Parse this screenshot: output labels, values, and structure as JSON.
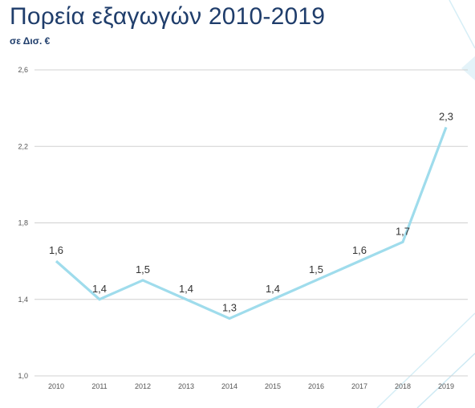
{
  "slide": {
    "title": "Πορεία εξαγωγών 2010-2019",
    "subtitle": "σε Δισ. €"
  },
  "colors": {
    "title": "#1f3d6b",
    "line": "#9fdcec",
    "grid": "#d0d0d0",
    "accent": "#6fc6e6"
  },
  "chart_data": {
    "type": "line",
    "title": "",
    "xlabel": "",
    "ylabel": "",
    "ylim": [
      1.0,
      2.6
    ],
    "yticks": [
      "1,0",
      "1,4",
      "1,8",
      "2,2",
      "2,6"
    ],
    "grid": true,
    "legend": "none",
    "categories": [
      "2010",
      "2011",
      "2012",
      "2013",
      "2014",
      "2015",
      "2016",
      "2017",
      "2018",
      "2019"
    ],
    "series": [
      {
        "values": [
          1.6,
          1.4,
          1.5,
          1.4,
          1.3,
          1.4,
          1.5,
          1.6,
          1.7,
          2.3
        ],
        "labels": [
          "1,6",
          "1,4",
          "1,5",
          "1,4",
          "1,3",
          "1,4",
          "1,5",
          "1,6",
          "1,7",
          "2,3"
        ]
      }
    ]
  }
}
